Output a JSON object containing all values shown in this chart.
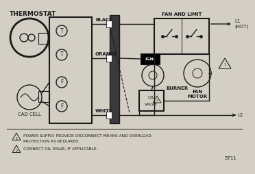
{
  "bg_color": "#d4cfc4",
  "line_color": "#1a1a1a",
  "title": "THERMOSTAT",
  "label_black": "BLACK",
  "label_orange": "ORANGE",
  "label_white": "WHITE",
  "label_fan_limit": "FAN AND LIMIT",
  "label_l1": "L1\n(HOT)",
  "label_l2": "L2",
  "label_ign": "IGN.",
  "label_burner": "BURNER",
  "label_oil_valve": "OIL",
  "label_oil_valve2": "VALVE",
  "label_fan_motor": "FAN\nMOTOR",
  "label_cad_cell": "CAD CELL",
  "note1a": "POWER SUPPLY. PROVIDE DISCONNECT MEANS AND OVERLOAD",
  "note1b": "PROTECTION AS REQUIRED.",
  "note2": "CONNECT OIL VALVE, IF APPLICABLE.",
  "model": "5711",
  "font_title": 6.5,
  "font_label": 5.0,
  "font_note": 4.2
}
